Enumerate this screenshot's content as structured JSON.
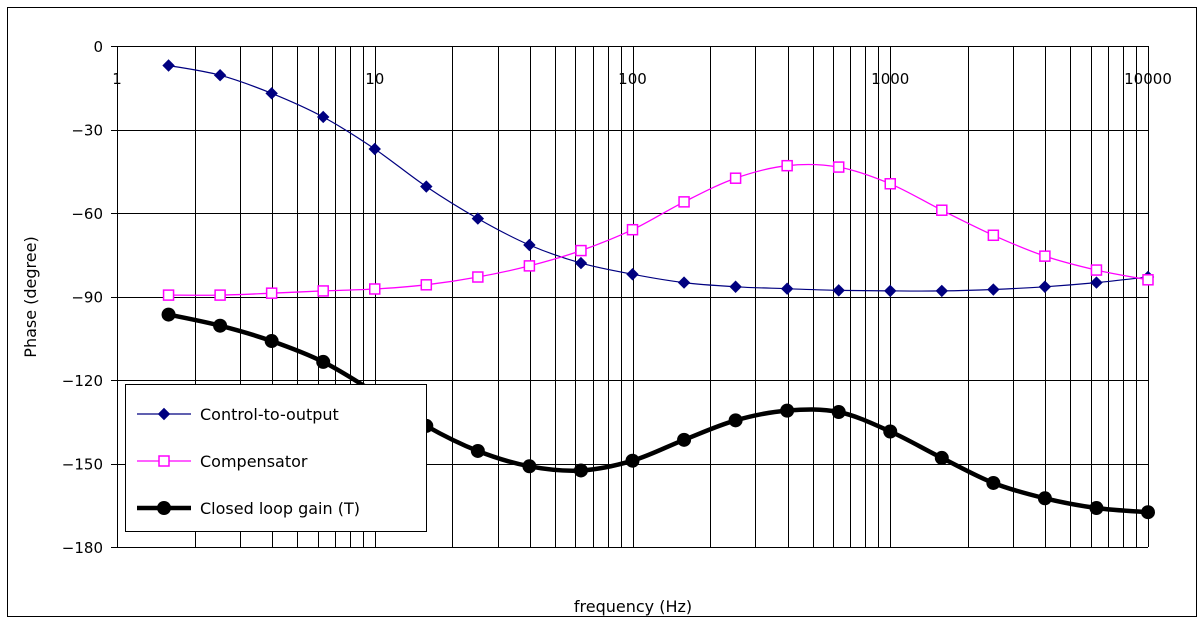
{
  "chart_data": {
    "type": "line",
    "xscale": "log",
    "xlim": [
      1,
      10000
    ],
    "ylim": [
      -180,
      0
    ],
    "xlabel": "frequency (Hz)",
    "ylabel": "Phase (degree)",
    "x_ticks": [
      "1",
      "10",
      "100",
      "1000",
      "10000"
    ],
    "y_ticks": [
      "0",
      "-30",
      "-60",
      "-90",
      "-120",
      "-150",
      "-180"
    ],
    "grid": {
      "x_minor": true,
      "y_major": true
    },
    "legend_position": "bottom-left",
    "x": [
      1.585,
      2.512,
      3.981,
      6.31,
      10,
      15.85,
      25.12,
      39.81,
      63.1,
      100,
      158.5,
      251.2,
      398.1,
      631,
      1000,
      1585,
      2512,
      3981,
      6310,
      10000
    ],
    "series": [
      {
        "name": "Control-to-output",
        "color": "#000080",
        "marker": "diamond",
        "values": [
          -7,
          -10.5,
          -17,
          -25.5,
          -37,
          -50.5,
          -62,
          -71.5,
          -78,
          -82,
          -85,
          -86.5,
          -87.2,
          -87.8,
          -88,
          -88,
          -87.5,
          -86.5,
          -85,
          -83
        ]
      },
      {
        "name": "Compensator",
        "color": "#ff00ff",
        "marker": "square-open",
        "values": [
          -89.5,
          -89.5,
          -88.8,
          -88,
          -87.3,
          -85.8,
          -83,
          -79,
          -73.5,
          -66,
          -56,
          -47.5,
          -43,
          -43.5,
          -49.5,
          -59,
          -68,
          -75.5,
          -80.5,
          -84
        ]
      },
      {
        "name": "Closed loop gain (T)",
        "color": "#000000",
        "marker": "circle",
        "values": [
          -96.5,
          -100.5,
          -106,
          -113.5,
          -124.5,
          -136.5,
          -145.5,
          -151,
          -152.5,
          -149,
          -141.5,
          -134.5,
          -131,
          -131.5,
          -138.5,
          -148,
          -157,
          -162.5,
          -166,
          -167.5
        ]
      }
    ]
  }
}
